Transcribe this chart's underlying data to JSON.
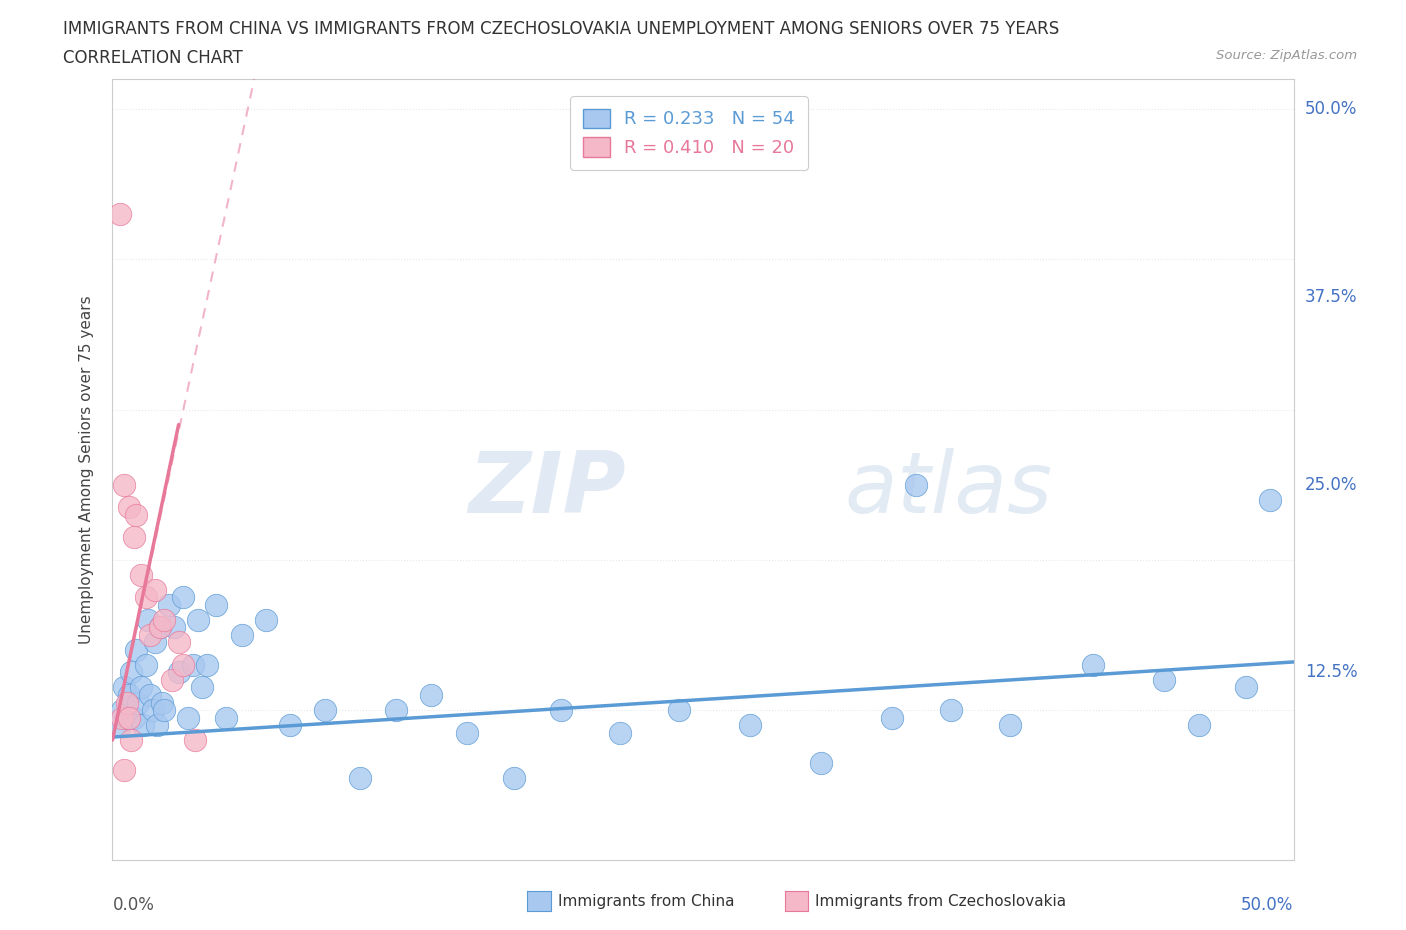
{
  "title_line1": "IMMIGRANTS FROM CHINA VS IMMIGRANTS FROM CZECHOSLOVAKIA UNEMPLOYMENT AMONG SENIORS OVER 75 YEARS",
  "title_line2": "CORRELATION CHART",
  "source_text": "Source: ZipAtlas.com",
  "ylabel": "Unemployment Among Seniors over 75 years",
  "ytick_values": [
    0.0,
    0.125,
    0.25,
    0.375,
    0.5
  ],
  "ytick_labels": [
    "",
    "12.5%",
    "25.0%",
    "37.5%",
    "50.0%"
  ],
  "xtick_left": "0.0%",
  "xtick_right": "50.0%",
  "xlim": [
    0.0,
    0.5
  ],
  "ylim": [
    0.0,
    0.52
  ],
  "legend_china_r": "R = 0.233",
  "legend_china_n": "N = 54",
  "legend_czech_r": "R = 0.410",
  "legend_czech_n": "N = 20",
  "watermark_zip": "ZIP",
  "watermark_atlas": "atlas",
  "china_color": "#a8c8f0",
  "china_color_dark": "#5b9bd5",
  "czech_color": "#f4b8c8",
  "czech_color_dark": "#e8789a",
  "background_color": "#ffffff",
  "grid_color": "#e8e8e8",
  "china_points_x": [
    0.003,
    0.004,
    0.005,
    0.006,
    0.007,
    0.008,
    0.009,
    0.01,
    0.011,
    0.012,
    0.013,
    0.014,
    0.015,
    0.016,
    0.017,
    0.018,
    0.019,
    0.02,
    0.021,
    0.022,
    0.024,
    0.026,
    0.028,
    0.03,
    0.032,
    0.034,
    0.036,
    0.038,
    0.04,
    0.044,
    0.048,
    0.055,
    0.065,
    0.075,
    0.09,
    0.105,
    0.12,
    0.135,
    0.15,
    0.17,
    0.19,
    0.215,
    0.24,
    0.27,
    0.3,
    0.33,
    0.355,
    0.38,
    0.415,
    0.445,
    0.46,
    0.48,
    0.34,
    0.49
  ],
  "china_points_y": [
    0.09,
    0.1,
    0.115,
    0.095,
    0.11,
    0.125,
    0.095,
    0.14,
    0.105,
    0.115,
    0.09,
    0.13,
    0.16,
    0.11,
    0.1,
    0.145,
    0.09,
    0.155,
    0.105,
    0.1,
    0.17,
    0.155,
    0.125,
    0.175,
    0.095,
    0.13,
    0.16,
    0.115,
    0.13,
    0.17,
    0.095,
    0.15,
    0.16,
    0.09,
    0.1,
    0.055,
    0.1,
    0.11,
    0.085,
    0.055,
    0.1,
    0.085,
    0.1,
    0.09,
    0.065,
    0.095,
    0.1,
    0.09,
    0.13,
    0.12,
    0.09,
    0.115,
    0.25,
    0.24
  ],
  "czech_points_x": [
    0.003,
    0.004,
    0.005,
    0.006,
    0.007,
    0.008,
    0.009,
    0.01,
    0.012,
    0.014,
    0.016,
    0.018,
    0.02,
    0.022,
    0.025,
    0.028,
    0.03,
    0.035,
    0.005,
    0.007
  ],
  "czech_points_y": [
    0.43,
    0.095,
    0.25,
    0.105,
    0.235,
    0.08,
    0.215,
    0.23,
    0.19,
    0.175,
    0.15,
    0.18,
    0.155,
    0.16,
    0.12,
    0.145,
    0.13,
    0.08,
    0.06,
    0.095
  ],
  "china_trend_x0": 0.0,
  "china_trend_x1": 0.5,
  "china_trend_y0": 0.082,
  "china_trend_y1": 0.132,
  "czech_trend_solid_x0": 0.0,
  "czech_trend_solid_x1": 0.028,
  "czech_trend_solid_y0": 0.08,
  "czech_trend_solid_y1": 0.29,
  "czech_trend_dash_x0": 0.0,
  "czech_trend_dash_x1": 0.06,
  "czech_trend_dash_y0": 0.08,
  "czech_trend_dash_y1": 0.52
}
